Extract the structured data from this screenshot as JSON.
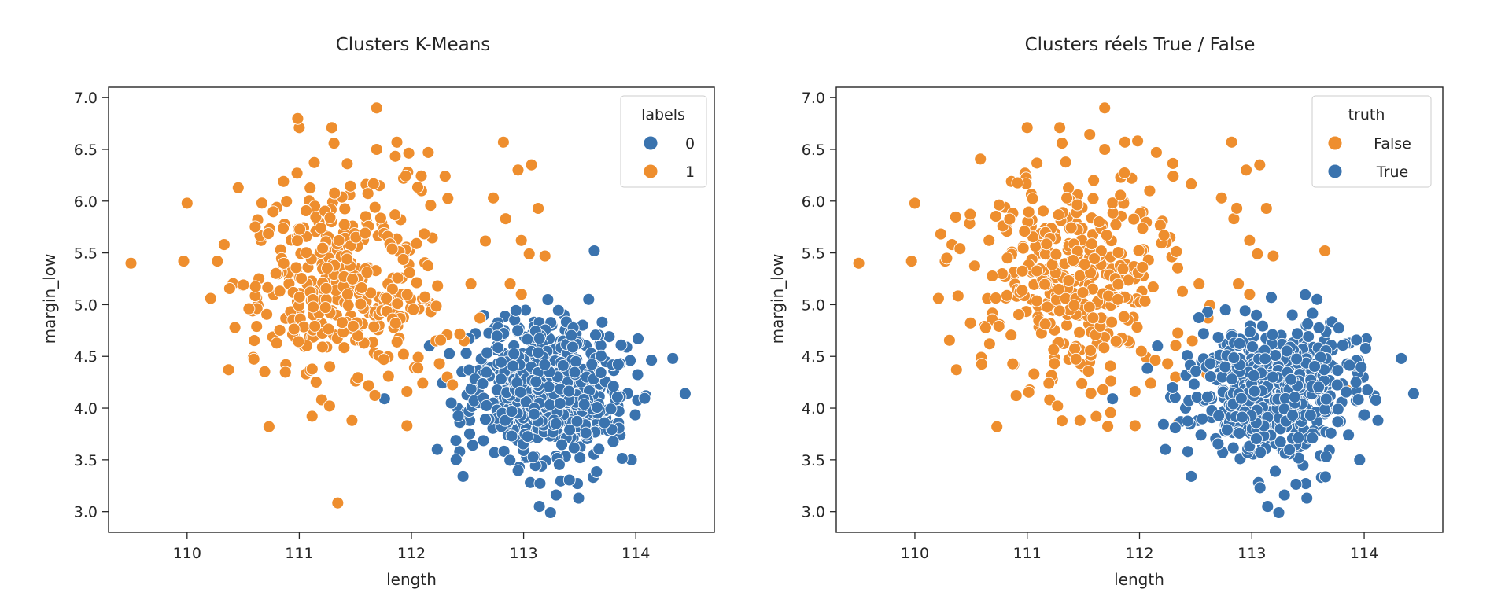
{
  "colors": {
    "orange": "#EE8E2E",
    "blue": "#3A73AE",
    "marker_edge": "#ffffff",
    "frame": "#262626"
  },
  "chart_data": [
    {
      "type": "scatter",
      "title": "Clusters K-Means",
      "xlabel": "length",
      "ylabel": "margin_low",
      "xlim": [
        109.3,
        114.7
      ],
      "ylim": [
        2.8,
        7.1
      ],
      "xticks": [
        110,
        111,
        112,
        113,
        114
      ],
      "yticks": [
        3.0,
        3.5,
        4.0,
        4.5,
        5.0,
        5.5,
        6.0,
        6.5,
        7.0
      ],
      "grid": false,
      "legend": {
        "title": "labels",
        "placement": "top-right",
        "entries": [
          {
            "label": "0",
            "color": "#3A73AE"
          },
          {
            "label": "1",
            "color": "#EE8E2E"
          }
        ]
      },
      "series": [
        {
          "name": "0",
          "color": "#3A73AE",
          "points": [
            [
              113.24,
              2.99
            ],
            [
              113.06,
              3.28
            ],
            [
              112.46,
              3.34
            ],
            [
              113.48,
              3.27
            ],
            [
              113.62,
              3.33
            ],
            [
              113.29,
              3.16
            ],
            [
              112.23,
              3.6
            ],
            [
              113.96,
              3.5
            ],
            [
              112.43,
              3.58
            ],
            [
              114.44,
              4.14
            ],
            [
              114.33,
              4.48
            ],
            [
              113.63,
              5.52
            ],
            [
              113.58,
              5.05
            ],
            [
              112.16,
              4.6
            ],
            [
              111.76,
              4.09
            ],
            [
              112.74,
              3.57
            ],
            [
              112.88,
              3.86
            ],
            [
              113.86,
              3.74
            ],
            [
              113.95,
              4.46
            ],
            [
              114.09,
              4.12
            ],
            [
              112.45,
              4.35
            ],
            [
              112.57,
              4.72
            ],
            [
              112.94,
              4.94
            ],
            [
              113.36,
              4.9
            ],
            [
              113.7,
              4.83
            ],
            [
              114.02,
              4.67
            ],
            [
              112.41,
              4.0
            ],
            [
              112.52,
              3.88
            ],
            [
              113.14,
              3.05
            ],
            [
              113.49,
              3.13
            ]
          ],
          "cluster": {
            "cx": 113.18,
            "cy": 4.18,
            "sx": 0.33,
            "sy": 0.3,
            "n": 640
          }
        },
        {
          "name": "1",
          "color": "#EE8E2E",
          "points": [
            [
              109.5,
              5.4
            ],
            [
              109.97,
              5.42
            ],
            [
              110.0,
              5.98
            ],
            [
              110.73,
              3.82
            ],
            [
              111.47,
              3.88
            ],
            [
              111.96,
              3.83
            ],
            [
              111.69,
              6.9
            ],
            [
              111.0,
              6.71
            ],
            [
              111.29,
              6.71
            ],
            [
              111.87,
              6.57
            ],
            [
              112.82,
              6.57
            ],
            [
              113.07,
              6.35
            ],
            [
              113.13,
              5.93
            ],
            [
              113.05,
              5.49
            ],
            [
              112.84,
              5.83
            ],
            [
              110.33,
              5.58
            ],
            [
              110.27,
              5.42
            ],
            [
              110.21,
              5.06
            ],
            [
              110.37,
              4.37
            ],
            [
              112.3,
              6.24
            ],
            [
              112.95,
              6.3
            ],
            [
              112.15,
              6.47
            ],
            [
              111.31,
              6.56
            ],
            [
              110.98,
              6.27
            ],
            [
              111.69,
              6.5
            ],
            [
              111.93,
              6.22
            ],
            [
              112.09,
              6.1
            ],
            [
              112.53,
              5.2
            ],
            [
              112.61,
              4.87
            ],
            [
              112.32,
              4.3
            ],
            [
              112.25,
              4.43
            ],
            [
              112.06,
              4.49
            ],
            [
              111.96,
              4.16
            ],
            [
              111.2,
              4.08
            ],
            [
              111.27,
              4.02
            ],
            [
              110.59,
              4.49
            ],
            [
              110.62,
              4.79
            ],
            [
              110.88,
              4.42
            ],
            [
              111.06,
              4.33
            ],
            [
              110.66,
              5.62
            ],
            [
              110.8,
              5.94
            ],
            [
              110.86,
              6.19
            ],
            [
              112.73,
              6.03
            ],
            [
              112.98,
              5.62
            ],
            [
              112.98,
              5.1
            ],
            [
              113.19,
              5.47
            ],
            [
              112.47,
              4.65
            ],
            [
              112.1,
              4.24
            ],
            [
              112.88,
              5.2
            ],
            [
              111.45,
              6.06
            ]
          ],
          "cluster": {
            "cx": 111.42,
            "cy": 5.2,
            "sx": 0.45,
            "sy": 0.48,
            "n": 360
          }
        }
      ]
    },
    {
      "type": "scatter",
      "title": "Clusters réels True / False",
      "xlabel": "length",
      "ylabel": "margin_low",
      "xlim": [
        109.3,
        114.7
      ],
      "ylim": [
        2.8,
        7.1
      ],
      "xticks": [
        110,
        111,
        112,
        113,
        114
      ],
      "yticks": [
        3.0,
        3.5,
        4.0,
        4.5,
        5.0,
        5.5,
        6.0,
        6.5,
        7.0
      ],
      "grid": false,
      "legend": {
        "title": "truth",
        "placement": "top-right",
        "entries": [
          {
            "label": "False",
            "color": "#EE8E2E"
          },
          {
            "label": "True",
            "color": "#3A73AE"
          }
        ]
      },
      "series": [
        {
          "name": "False",
          "color": "#EE8E2E",
          "points": [
            [
              109.5,
              5.4
            ],
            [
              109.97,
              5.42
            ],
            [
              110.0,
              5.98
            ],
            [
              110.73,
              3.82
            ],
            [
              111.47,
              3.88
            ],
            [
              111.96,
              3.83
            ],
            [
              111.69,
              6.9
            ],
            [
              111.0,
              6.71
            ],
            [
              111.29,
              6.71
            ],
            [
              111.87,
              6.57
            ],
            [
              112.82,
              6.57
            ],
            [
              113.07,
              6.35
            ],
            [
              113.13,
              5.93
            ],
            [
              113.05,
              5.49
            ],
            [
              112.84,
              5.83
            ],
            [
              110.33,
              5.58
            ],
            [
              110.27,
              5.42
            ],
            [
              110.21,
              5.06
            ],
            [
              110.37,
              4.37
            ],
            [
              112.3,
              6.24
            ],
            [
              112.95,
              6.3
            ],
            [
              112.15,
              6.47
            ],
            [
              111.31,
              6.56
            ],
            [
              110.98,
              6.27
            ],
            [
              111.69,
              6.5
            ],
            [
              111.93,
              6.22
            ],
            [
              112.09,
              6.1
            ],
            [
              112.53,
              5.2
            ],
            [
              112.61,
              4.87
            ],
            [
              112.32,
              4.3
            ],
            [
              112.25,
              4.43
            ],
            [
              112.06,
              4.49
            ],
            [
              111.96,
              4.16
            ],
            [
              111.2,
              4.08
            ],
            [
              111.27,
              4.02
            ],
            [
              110.59,
              4.49
            ],
            [
              110.62,
              4.79
            ],
            [
              110.88,
              4.42
            ],
            [
              111.06,
              4.33
            ],
            [
              110.66,
              5.62
            ],
            [
              110.8,
              5.94
            ],
            [
              110.86,
              6.19
            ],
            [
              112.73,
              6.03
            ],
            [
              112.98,
              5.62
            ],
            [
              112.98,
              5.1
            ],
            [
              113.19,
              5.47
            ],
            [
              112.47,
              4.65
            ],
            [
              112.1,
              4.24
            ],
            [
              112.88,
              5.2
            ],
            [
              111.45,
              6.06
            ],
            [
              113.65,
              5.52
            ],
            [
              113.85,
              4.17
            ],
            [
              112.35,
              3.86
            ],
            [
              113.45,
              4.3
            ],
            [
              112.6,
              4.33
            ]
          ],
          "cluster": {
            "cx": 111.42,
            "cy": 5.2,
            "sx": 0.45,
            "sy": 0.48,
            "n": 360
          }
        },
        {
          "name": "True",
          "color": "#3A73AE",
          "points": [
            [
              113.24,
              2.99
            ],
            [
              113.06,
              3.28
            ],
            [
              112.46,
              3.34
            ],
            [
              113.48,
              3.27
            ],
            [
              113.62,
              3.33
            ],
            [
              113.29,
              3.16
            ],
            [
              112.23,
              3.6
            ],
            [
              113.96,
              3.5
            ],
            [
              112.43,
              3.58
            ],
            [
              114.44,
              4.14
            ],
            [
              114.33,
              4.48
            ],
            [
              113.58,
              5.05
            ],
            [
              112.16,
              4.6
            ],
            [
              111.76,
              4.09
            ],
            [
              112.74,
              3.57
            ],
            [
              112.88,
              3.86
            ],
            [
              113.86,
              3.74
            ],
            [
              113.95,
              4.46
            ],
            [
              114.09,
              4.12
            ],
            [
              112.45,
              4.35
            ],
            [
              112.57,
              4.72
            ],
            [
              112.94,
              4.94
            ],
            [
              113.36,
              4.9
            ],
            [
              113.7,
              4.83
            ],
            [
              114.02,
              4.67
            ],
            [
              112.41,
              4.0
            ],
            [
              112.52,
              3.88
            ],
            [
              113.14,
              3.05
            ],
            [
              113.49,
              3.13
            ]
          ],
          "cluster": {
            "cx": 113.18,
            "cy": 4.18,
            "sx": 0.33,
            "sy": 0.3,
            "n": 640
          }
        }
      ]
    }
  ]
}
